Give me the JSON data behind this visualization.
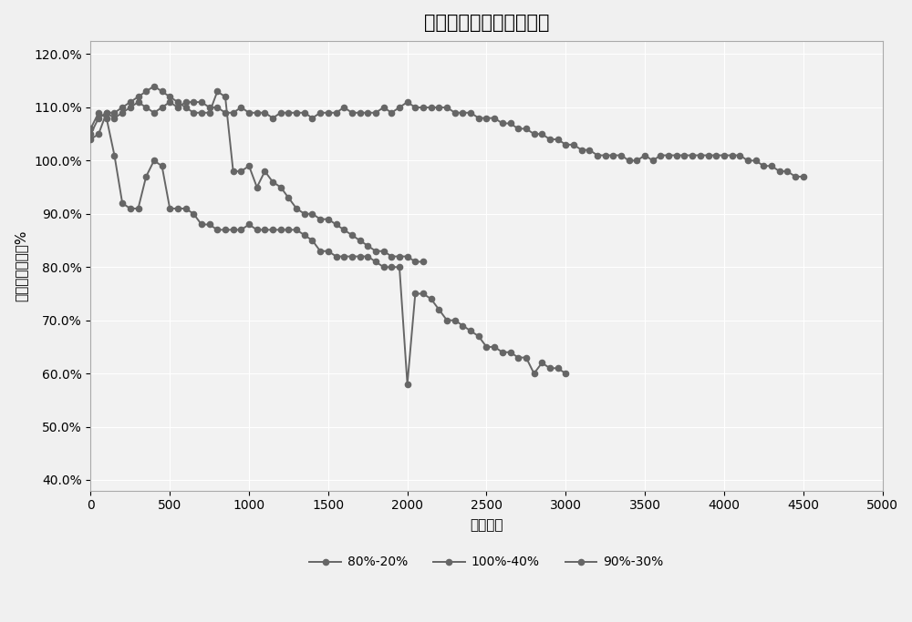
{
  "title": "三种循环制式的寿命曲线",
  "xlabel": "循环次数",
  "ylabel": "与剩余容量比值%",
  "xlim": [
    0,
    5000
  ],
  "xticks": [
    0,
    500,
    1000,
    1500,
    2000,
    2500,
    3000,
    3500,
    4000,
    4500,
    5000
  ],
  "yticks": [
    0.4,
    0.5,
    0.6,
    0.7,
    0.8,
    0.9,
    1.0,
    1.1,
    1.2
  ],
  "ytick_labels": [
    "40.0%",
    "50.0%",
    "60.0%",
    "70.0%",
    "80.0%",
    "90.0%",
    "100.0%",
    "110.0%",
    "120.0%"
  ],
  "line_color": "#666666",
  "marker": "o",
  "markersize": 4.5,
  "linewidth": 1.4,
  "legend_labels": [
    "80%-20%",
    "100%-40%",
    "90%-30%"
  ],
  "series_80_20_x": [
    0,
    50,
    100,
    150,
    200,
    250,
    300,
    350,
    400,
    450,
    500,
    550,
    600,
    650,
    700,
    750,
    800,
    850,
    900,
    950,
    1000,
    1050,
    1100,
    1150,
    1200,
    1250,
    1300,
    1350,
    1400,
    1450,
    1500,
    1550,
    1600,
    1650,
    1700,
    1750,
    1800,
    1850,
    1900,
    1950,
    2000,
    2050,
    2100,
    2150,
    2200,
    2250,
    2300,
    2350,
    2400,
    2450,
    2500,
    2550,
    2600,
    2650,
    2700,
    2750,
    2800,
    2850,
    2900,
    2950,
    3000,
    3050,
    3100,
    3150,
    3200,
    3250,
    3300,
    3350,
    3400,
    3450,
    3500,
    3550,
    3600,
    3650,
    3700,
    3750,
    3800,
    3850,
    3900,
    3950,
    4000,
    4050,
    4100,
    4150,
    4200,
    4250,
    4300,
    4350,
    4400,
    4450,
    4500
  ],
  "series_80_20_y": [
    1.04,
    1.05,
    1.09,
    1.08,
    1.09,
    1.1,
    1.11,
    1.1,
    1.09,
    1.1,
    1.11,
    1.1,
    1.11,
    1.11,
    1.11,
    1.1,
    1.1,
    1.09,
    1.09,
    1.1,
    1.09,
    1.09,
    1.09,
    1.08,
    1.09,
    1.09,
    1.09,
    1.09,
    1.08,
    1.09,
    1.09,
    1.09,
    1.1,
    1.09,
    1.09,
    1.09,
    1.09,
    1.1,
    1.09,
    1.1,
    1.11,
    1.1,
    1.1,
    1.1,
    1.1,
    1.1,
    1.09,
    1.09,
    1.09,
    1.08,
    1.08,
    1.08,
    1.07,
    1.07,
    1.06,
    1.06,
    1.05,
    1.05,
    1.04,
    1.04,
    1.03,
    1.03,
    1.02,
    1.02,
    1.01,
    1.01,
    1.01,
    1.01,
    1.0,
    1.0,
    1.01,
    1.0,
    1.01,
    1.01,
    1.01,
    1.01,
    1.01,
    1.01,
    1.01,
    1.01,
    1.01,
    1.01,
    1.01,
    1.0,
    1.0,
    0.99,
    0.99,
    0.98,
    0.98,
    0.97,
    0.97
  ],
  "series_100_40_x": [
    0,
    50,
    100,
    150,
    200,
    250,
    300,
    350,
    400,
    450,
    500,
    550,
    600,
    650,
    700,
    750,
    800,
    850,
    900,
    950,
    1000,
    1050,
    1100,
    1150,
    1200,
    1250,
    1300,
    1350,
    1400,
    1450,
    1500,
    1550,
    1600,
    1650,
    1700,
    1750,
    1800,
    1850,
    1900,
    1950,
    2000,
    2050,
    2100,
    2150,
    2200,
    2250,
    2300,
    2350,
    2400,
    2450,
    2500,
    2550,
    2600,
    2650,
    2700,
    2750,
    2800,
    2850,
    2900,
    2950,
    3000
  ],
  "series_100_40_y": [
    1.06,
    1.09,
    1.08,
    1.01,
    0.92,
    0.91,
    0.91,
    0.97,
    1.0,
    0.99,
    0.91,
    0.91,
    0.91,
    0.9,
    0.88,
    0.88,
    0.87,
    0.87,
    0.87,
    0.87,
    0.88,
    0.87,
    0.87,
    0.87,
    0.87,
    0.87,
    0.87,
    0.86,
    0.85,
    0.83,
    0.83,
    0.82,
    0.82,
    0.82,
    0.82,
    0.82,
    0.81,
    0.8,
    0.8,
    0.8,
    0.58,
    0.75,
    0.75,
    0.74,
    0.72,
    0.7,
    0.7,
    0.69,
    0.68,
    0.67,
    0.65,
    0.65,
    0.64,
    0.64,
    0.63,
    0.63,
    0.6,
    0.62,
    0.61,
    0.61,
    0.6
  ],
  "series_90_30_x": [
    0,
    50,
    100,
    150,
    200,
    250,
    300,
    350,
    400,
    450,
    500,
    550,
    600,
    650,
    700,
    750,
    800,
    850,
    900,
    950,
    1000,
    1050,
    1100,
    1150,
    1200,
    1250,
    1300,
    1350,
    1400,
    1450,
    1500,
    1550,
    1600,
    1650,
    1700,
    1750,
    1800,
    1850,
    1900,
    1950,
    2000,
    2050,
    2100
  ],
  "series_90_30_y": [
    1.05,
    1.08,
    1.09,
    1.09,
    1.1,
    1.11,
    1.12,
    1.13,
    1.14,
    1.13,
    1.12,
    1.11,
    1.1,
    1.09,
    1.09,
    1.09,
    1.13,
    1.12,
    0.98,
    0.98,
    0.99,
    0.95,
    0.98,
    0.96,
    0.95,
    0.93,
    0.91,
    0.9,
    0.9,
    0.89,
    0.89,
    0.88,
    0.87,
    0.86,
    0.85,
    0.84,
    0.83,
    0.83,
    0.82,
    0.82,
    0.82,
    0.81,
    0.81
  ],
  "bg_color": "#f2f2f2",
  "grid_color": "#ffffff",
  "title_fontsize": 15,
  "tick_fontsize": 10,
  "label_fontsize": 11,
  "legend_fontsize": 10
}
